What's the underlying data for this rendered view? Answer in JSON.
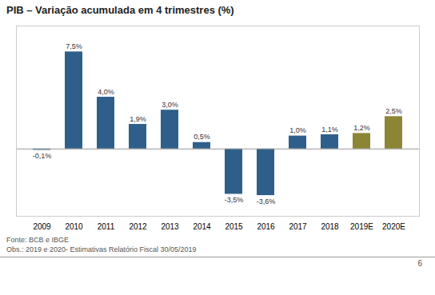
{
  "chart_data": {
    "type": "bar",
    "title": "PIB – Variação acumulada em 4 trimestres (%)",
    "categories": [
      "2009",
      "2010",
      "2011",
      "2012",
      "2013",
      "2014",
      "2015",
      "2016",
      "2017",
      "2018",
      "2019E",
      "2020E"
    ],
    "values": [
      -0.1,
      7.5,
      4.0,
      1.9,
      3.0,
      0.5,
      -3.5,
      -3.6,
      1.0,
      1.1,
      1.2,
      2.5
    ],
    "value_labels": [
      "-0,1%",
      "7,5%",
      "4,0%",
      "1,9%",
      "3,0%",
      "0,5%",
      "-3,5%",
      "-3,6%",
      "1,0%",
      "1,1%",
      "1,2%",
      "2,5%"
    ],
    "colors": [
      "#2e5f8a",
      "#2e5f8a",
      "#2e5f8a",
      "#2e5f8a",
      "#2e5f8a",
      "#2e5f8a",
      "#2e5f8a",
      "#2e5f8a",
      "#2e5f8a",
      "#2e5f8a",
      "#8b8535",
      "#8b8535"
    ],
    "ylim": [
      -5.2,
      9.5
    ],
    "yticks": [],
    "grid": false,
    "data_labels": true,
    "tick_labels": "x",
    "annotations": [
      "Fonte: BCB e IBGE",
      "Obs.: 2019 e 2020- Estimativas Relatório Fiscal 30/05/2019",
      "6"
    ]
  }
}
